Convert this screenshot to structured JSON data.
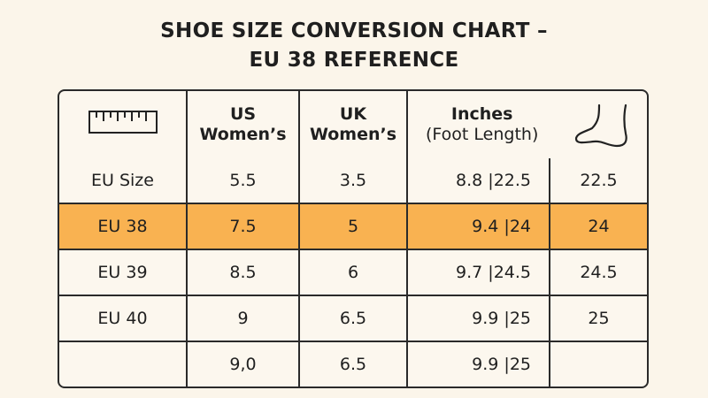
{
  "title": {
    "line1": "SHOE SIZE CONVERSION CHART –",
    "line2": "EU 38 REFERENCE"
  },
  "colors": {
    "highlight": "#f9b251",
    "background": "#fbf5ea",
    "border": "#2a2a2a"
  },
  "header": {
    "icon_col": "ruler-icon",
    "us": [
      "US",
      "Women’s"
    ],
    "uk": [
      "UK",
      "Women’s"
    ],
    "inches": [
      "Inches",
      "(Foot Length)"
    ],
    "inches_icon": "foot-icon"
  },
  "rows": [
    {
      "label": "EU Size",
      "us": "5.5",
      "uk": "3.5",
      "inches": "8.8 |22.5",
      "cm": "22.5",
      "highlight": false
    },
    {
      "label": "EU 38",
      "us": "7.5",
      "uk": "5",
      "inches": "9.4 |24",
      "cm": "24",
      "highlight": true
    },
    {
      "label": "EU 39",
      "us": "8.5",
      "uk": "6",
      "inches": "9.7 |24.5",
      "cm": "24.5",
      "highlight": false
    },
    {
      "label": "EU 40",
      "us": "9",
      "uk": "6.5",
      "inches": "9.9 |25",
      "cm": "25",
      "highlight": false
    },
    {
      "label": "",
      "us": "9,0",
      "uk": "6.5",
      "inches": "9.9 |25",
      "cm": "",
      "highlight": false
    }
  ]
}
